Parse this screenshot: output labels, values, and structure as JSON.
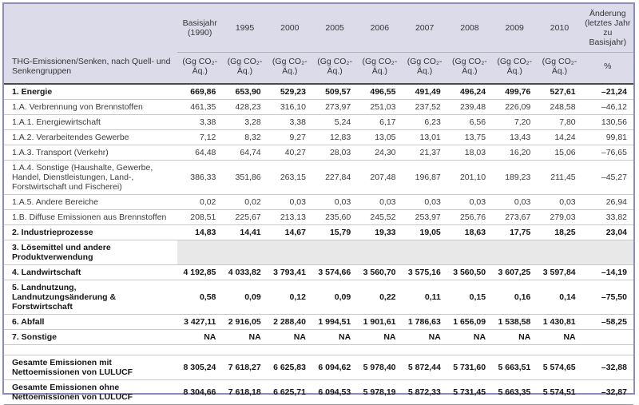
{
  "table": {
    "row_header": "THG-Emissionen/Senken, nach Quell- und Senkengruppen",
    "columns": [
      {
        "label": "Basisjahr (1990)",
        "unit": "(Gg CO₂-Äq.)"
      },
      {
        "label": "1995",
        "unit": "(Gg CO₂-Äq.)"
      },
      {
        "label": "2000",
        "unit": "(Gg CO₂-Äq.)"
      },
      {
        "label": "2005",
        "unit": "(Gg CO₂-Äq.)"
      },
      {
        "label": "2006",
        "unit": "(Gg CO₂-Äq.)"
      },
      {
        "label": "2007",
        "unit": "(Gg CO₂-Äq.)"
      },
      {
        "label": "2008",
        "unit": "(Gg CO₂-Äq.)"
      },
      {
        "label": "2009",
        "unit": "(Gg CO₂-Äq.)"
      },
      {
        "label": "2010",
        "unit": "(Gg CO₂-Äq.)"
      },
      {
        "label": "Änderung (letztes Jahr zu Basisjahr)",
        "unit": "%"
      }
    ],
    "rows": [
      {
        "label": "1. Energie",
        "bold": true,
        "values": [
          "669,86",
          "653,90",
          "529,23",
          "509,57",
          "496,55",
          "491,49",
          "496,24",
          "499,76",
          "527,61"
        ],
        "change": "–21,24"
      },
      {
        "label": "1.A. Verbrennung von Brennstoffen",
        "bold": false,
        "values": [
          "461,35",
          "428,23",
          "316,10",
          "273,97",
          "251,03",
          "237,52",
          "239,48",
          "226,09",
          "248,58"
        ],
        "change": "–46,12"
      },
      {
        "label": "1.A.1. Energiewirtschaft",
        "bold": false,
        "values": [
          "3,38",
          "3,28",
          "3,38",
          "5,24",
          "6,17",
          "6,23",
          "6,56",
          "7,20",
          "7,80"
        ],
        "change": "130,56"
      },
      {
        "label": "1.A.2. Verarbeitendes Gewerbe",
        "bold": false,
        "values": [
          "7,12",
          "8,32",
          "9,27",
          "12,83",
          "13,05",
          "13,01",
          "13,75",
          "13,43",
          "14,24"
        ],
        "change": "99,81"
      },
      {
        "label": "1.A.3. Transport (Verkehr)",
        "bold": false,
        "values": [
          "64,48",
          "64,74",
          "40,27",
          "28,03",
          "24,30",
          "21,37",
          "18,03",
          "16,20",
          "15,06"
        ],
        "change": "–76,65"
      },
      {
        "label": "1.A.4. Sonstige (Haushalte, Gewerbe, Handel, Dienstleistungen, Land-, Forstwirtschaft und Fischerei)",
        "bold": false,
        "values": [
          "386,33",
          "351,86",
          "263,15",
          "227,84",
          "207,48",
          "196,87",
          "201,10",
          "189,23",
          "211,45"
        ],
        "change": "–45,27"
      },
      {
        "label": "1.A.5. Andere Bereiche",
        "bold": false,
        "values": [
          "0,02",
          "0,02",
          "0,03",
          "0,03",
          "0,03",
          "0,03",
          "0,03",
          "0,03",
          "0,03"
        ],
        "change": "26,94"
      },
      {
        "label": "1.B. Diffuse Emissionen aus Brennstoffen",
        "bold": false,
        "values": [
          "208,51",
          "225,67",
          "213,13",
          "235,60",
          "245,52",
          "253,97",
          "256,76",
          "273,67",
          "279,03"
        ],
        "change": "33,82"
      },
      {
        "label": "2. Industrieprozesse",
        "bold": true,
        "values": [
          "14,83",
          "14,41",
          "14,67",
          "15,79",
          "19,33",
          "19,05",
          "18,63",
          "17,75",
          "18,25"
        ],
        "change": "23,04"
      },
      {
        "label": "3. Lösemittel und andere Produktverwendung",
        "bold": true,
        "gray": true,
        "values": [
          "",
          "",
          "",
          "",
          "",
          "",
          "",
          "",
          ""
        ],
        "change": ""
      },
      {
        "label": "4. Landwirtschaft",
        "bold": true,
        "values": [
          "4 192,85",
          "4 033,82",
          "3 793,41",
          "3 574,66",
          "3 560,70",
          "3 575,16",
          "3 560,50",
          "3 607,25",
          "3 597,84"
        ],
        "change": "–14,19"
      },
      {
        "label": "5. Landnutzung, Landnutzungsänderung & Forstwirtschaft",
        "bold": true,
        "values": [
          "0,58",
          "0,09",
          "0,12",
          "0,09",
          "0,22",
          "0,11",
          "0,15",
          "0,16",
          "0,14"
        ],
        "change": "–75,50"
      },
      {
        "label": "6. Abfall",
        "bold": true,
        "values": [
          "3 427,11",
          "2 916,05",
          "2 288,40",
          "1 994,51",
          "1 901,61",
          "1 786,63",
          "1 656,09",
          "1 538,58",
          "1 430,81"
        ],
        "change": "–58,25"
      },
      {
        "label": "7. Sonstige",
        "bold": true,
        "values": [
          "NA",
          "NA",
          "NA",
          "NA",
          "NA",
          "NA",
          "NA",
          "NA",
          "NA"
        ],
        "change": ""
      },
      {
        "spacer": true
      },
      {
        "label": "Gesamte Emissionen mit Nettoemissionen von LULUCF",
        "bold": true,
        "values": [
          "8 305,24",
          "7 618,27",
          "6 625,83",
          "6 094,62",
          "5 978,40",
          "5 872,44",
          "5 731,60",
          "5 663,51",
          "5 574,65"
        ],
        "change": "–32,88"
      },
      {
        "label": "Gesamte Emissionen ohne Nettoemissionen von LULUCF",
        "bold": true,
        "values": [
          "8 304,66",
          "7 618,18",
          "6 625,71",
          "6 094,53",
          "5 978,19",
          "5 872,33",
          "5 731,45",
          "5 663,35",
          "5 574,51"
        ],
        "change": "–32,87"
      }
    ]
  }
}
